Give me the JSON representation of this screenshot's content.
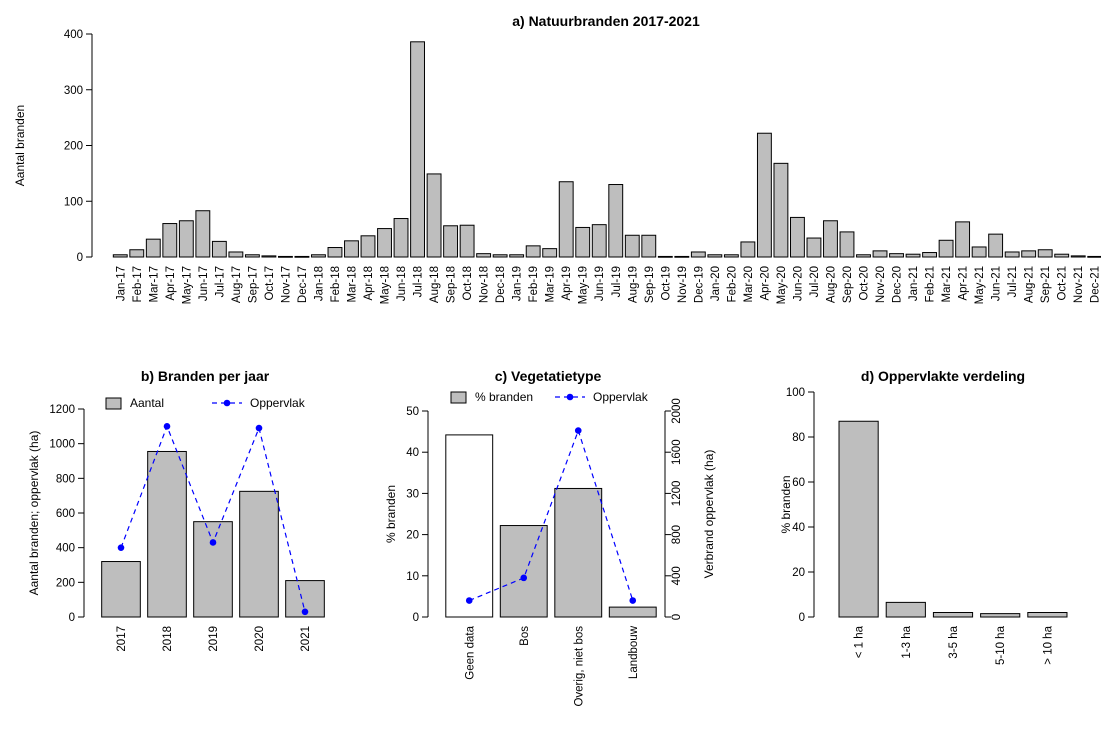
{
  "chart_data": [
    {
      "id": "a",
      "type": "bar",
      "title": "a) Natuurbranden 2017-2021",
      "ylabel": "Aantal branden",
      "xlabel": "",
      "ylim": [
        0,
        400
      ],
      "yticks": [
        0,
        100,
        200,
        300,
        400
      ],
      "bar_color": "#bebebe",
      "categories": [
        "Jan-17",
        "Feb-17",
        "Mar-17",
        "Apr-17",
        "May-17",
        "Jun-17",
        "Jul-17",
        "Aug-17",
        "Sep-17",
        "Oct-17",
        "Nov-17",
        "Dec-17",
        "Jan-18",
        "Feb-18",
        "Mar-18",
        "Apr-18",
        "May-18",
        "Jun-18",
        "Jul-18",
        "Aug-18",
        "Sep-18",
        "Oct-18",
        "Nov-18",
        "Dec-18",
        "Jan-19",
        "Feb-19",
        "Mar-19",
        "Apr-19",
        "May-19",
        "Jun-19",
        "Jul-19",
        "Aug-19",
        "Sep-19",
        "Oct-19",
        "Nov-19",
        "Dec-19",
        "Jan-20",
        "Feb-20",
        "Mar-20",
        "Apr-20",
        "May-20",
        "Jun-20",
        "Jul-20",
        "Aug-20",
        "Sep-20",
        "Oct-20",
        "Nov-20",
        "Dec-20",
        "Jan-21",
        "Feb-21",
        "Mar-21",
        "Apr-21",
        "May-21",
        "Jun-21",
        "Jul-21",
        "Aug-21",
        "Sep-21",
        "Oct-21",
        "Nov-21",
        "Dec-21"
      ],
      "values": [
        4,
        13,
        32,
        60,
        65,
        83,
        28,
        9,
        4,
        2,
        1,
        1,
        4,
        17,
        29,
        38,
        51,
        69,
        386,
        149,
        56,
        57,
        6,
        4,
        4,
        20,
        15,
        135,
        53,
        58,
        130,
        39,
        39,
        1,
        1,
        9,
        4,
        4,
        27,
        222,
        168,
        71,
        34,
        65,
        45,
        4,
        11,
        6,
        5,
        8,
        30,
        63,
        18,
        41,
        9,
        11,
        13,
        5,
        2,
        1
      ]
    },
    {
      "id": "b",
      "type": "bar",
      "title": "b) Branden per jaar",
      "ylabel": "Aantal branden; oppervlak (ha)",
      "xlabel": "",
      "ylim": [
        0,
        1200
      ],
      "yticks": [
        0,
        200,
        400,
        600,
        800,
        1000,
        1200
      ],
      "categories": [
        "2017",
        "2018",
        "2019",
        "2020",
        "2021"
      ],
      "series": [
        {
          "name": "Aantal",
          "kind": "bar",
          "color": "#bebebe",
          "values": [
            320,
            955,
            550,
            725,
            210
          ]
        },
        {
          "name": "Oppervlak",
          "kind": "line",
          "color": "#0000ff",
          "values": [
            400,
            1100,
            430,
            1090,
            30
          ]
        }
      ],
      "legend": "top"
    },
    {
      "id": "c",
      "type": "bar",
      "title": "c) Vegetatietype",
      "ylabel": "% branden",
      "y2label": "Verbrand oppervlak (ha)",
      "xlabel": "",
      "ylim": [
        0,
        50
      ],
      "yticks": [
        0,
        10,
        20,
        30,
        40,
        50
      ],
      "y2lim": [
        0,
        2000
      ],
      "y2ticks": [
        0,
        400,
        800,
        1200,
        1600,
        2000
      ],
      "categories": [
        "Geen data",
        "Bos",
        "Overig, niet bos",
        "Landbouw"
      ],
      "series": [
        {
          "name": "% branden",
          "kind": "bar",
          "colors": [
            "#ffffff",
            "#bebebe",
            "#bebebe",
            "#bebebe"
          ],
          "values": [
            44.2,
            22.2,
            31.2,
            2.4
          ]
        },
        {
          "name": "Oppervlak",
          "kind": "line",
          "axis": "right",
          "color": "#0000ff",
          "values": [
            160,
            380,
            1810,
            160
          ]
        }
      ],
      "legend": "top"
    },
    {
      "id": "d",
      "type": "bar",
      "title": "d) Oppervlakte verdeling",
      "ylabel": "% branden",
      "xlabel": "",
      "ylim": [
        0,
        100
      ],
      "yticks": [
        0,
        20,
        40,
        60,
        80,
        100
      ],
      "bar_color": "#bebebe",
      "categories": [
        "< 1 ha",
        "1-3 ha",
        "3-5 ha",
        "5-10 ha",
        "> 10 ha"
      ],
      "values": [
        87,
        6.5,
        2,
        1.5,
        2
      ]
    }
  ]
}
